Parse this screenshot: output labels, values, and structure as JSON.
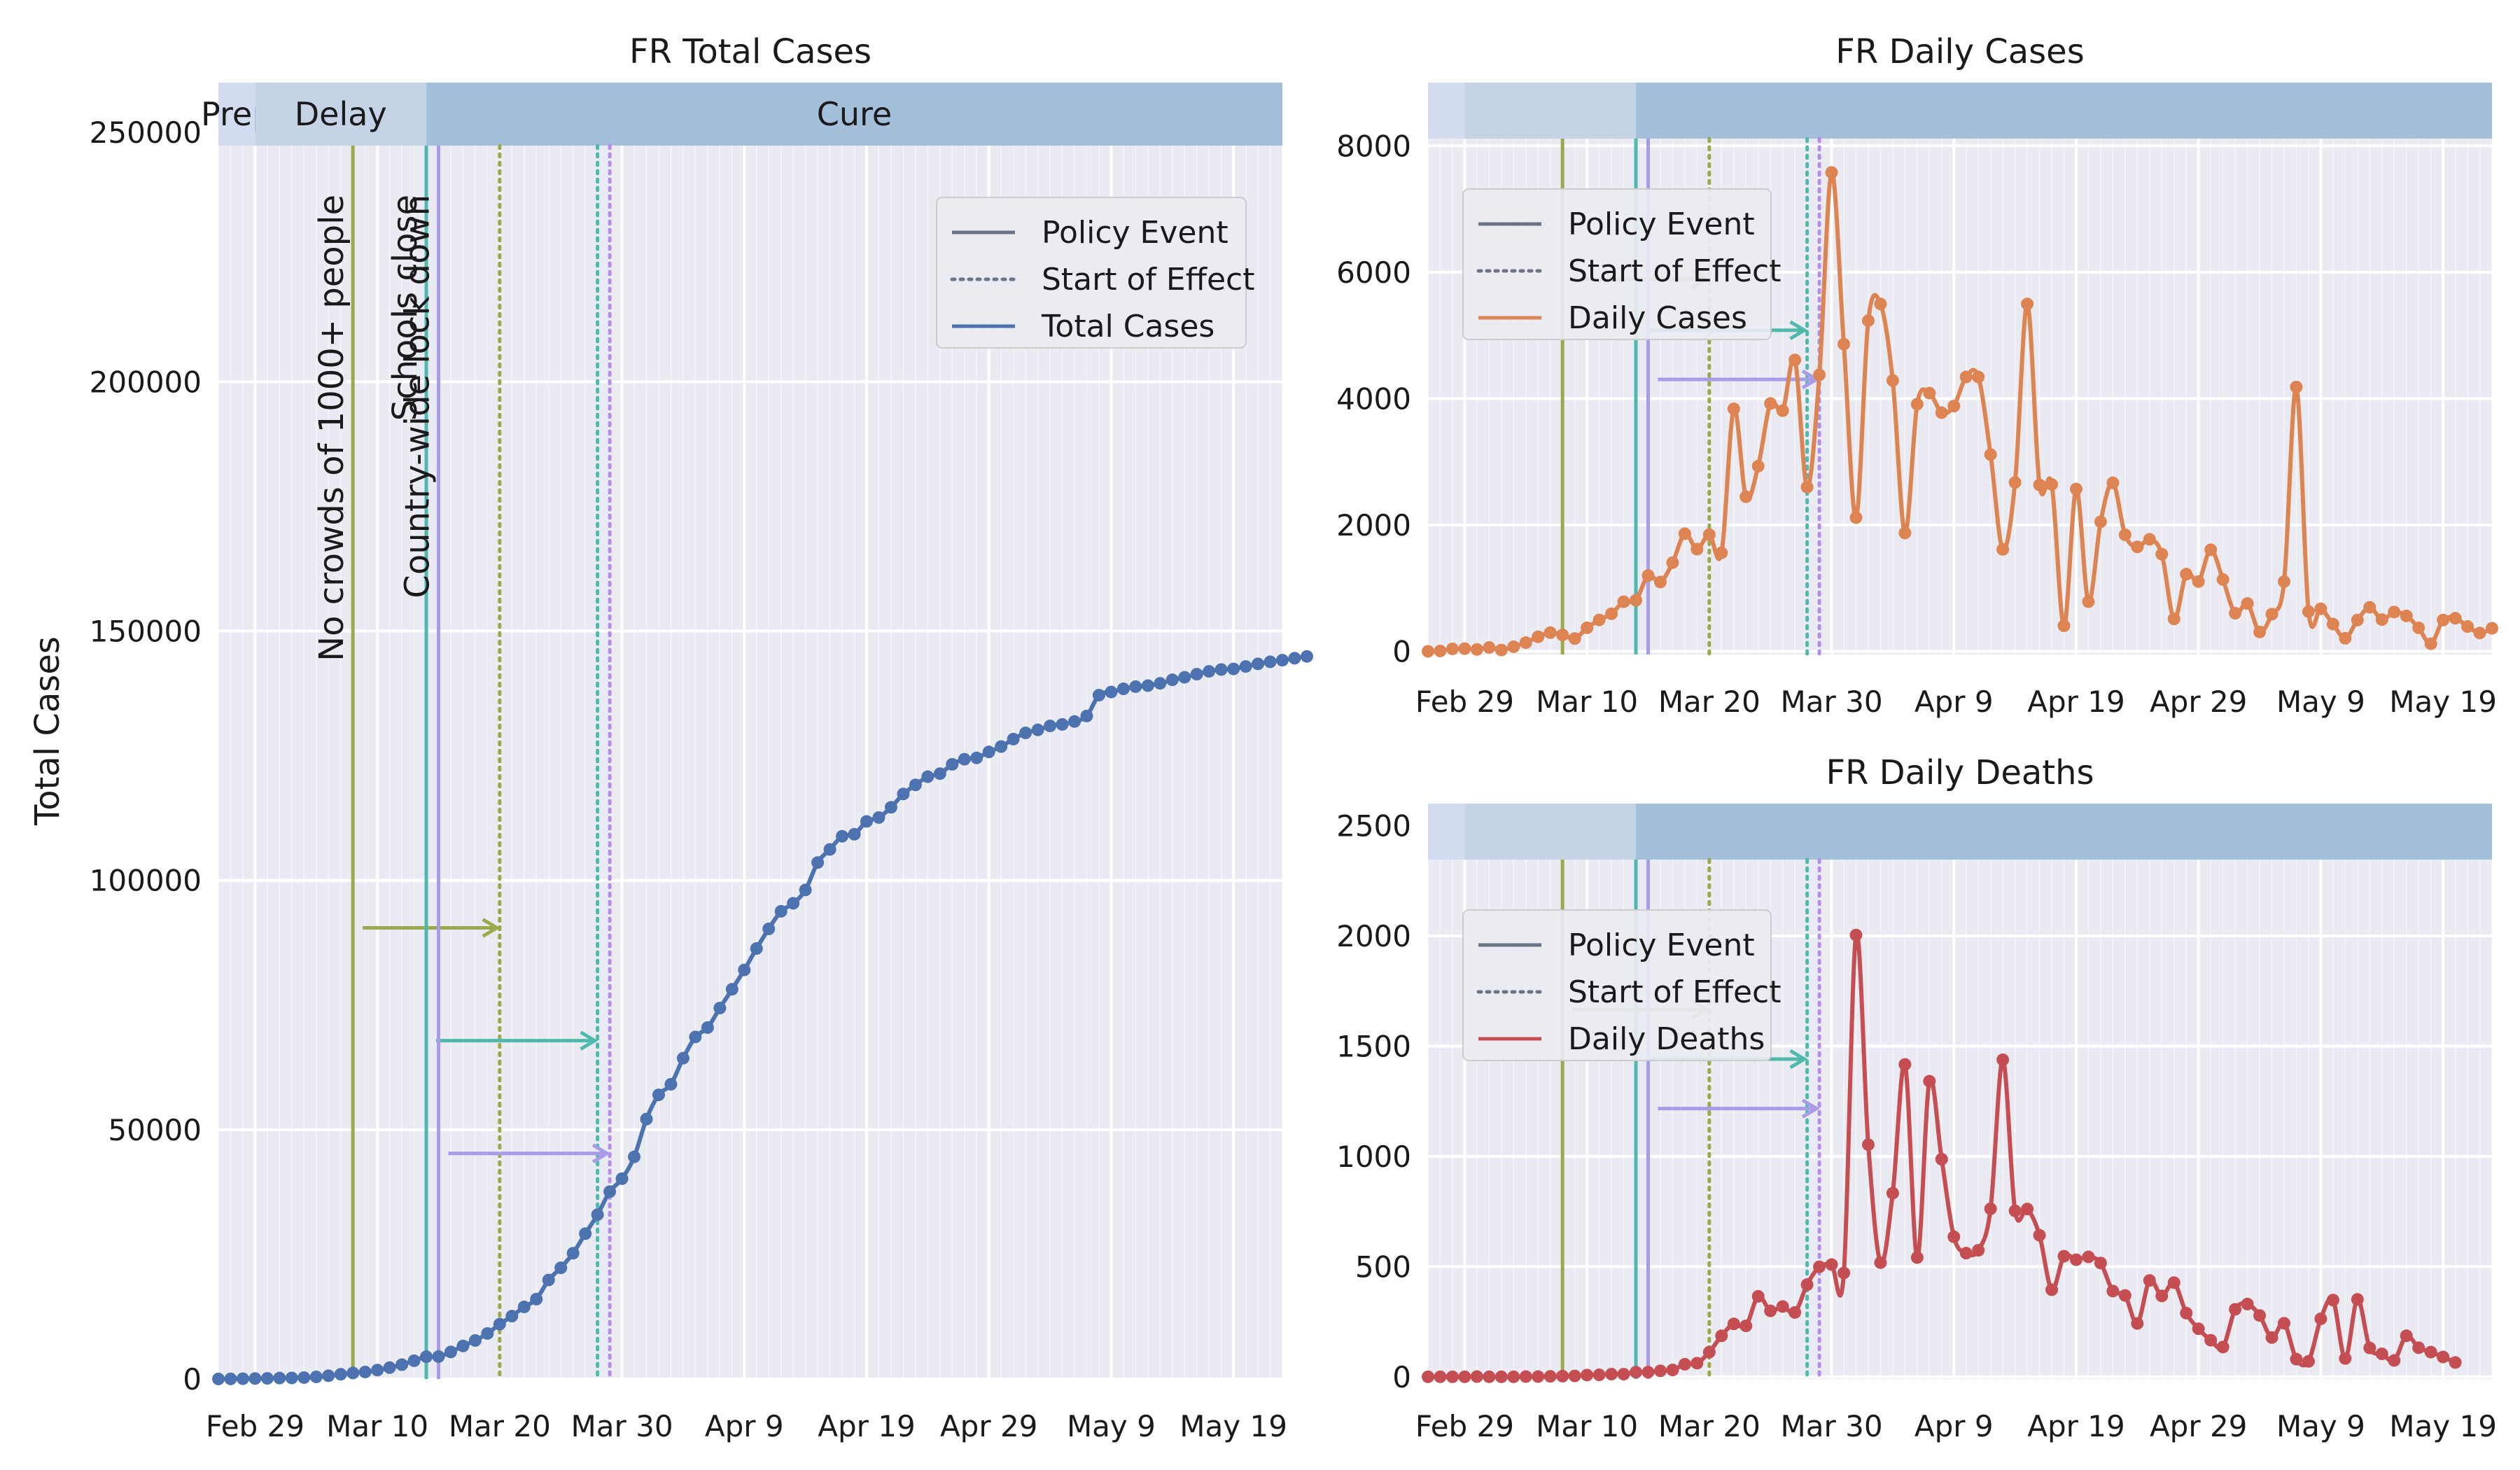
{
  "figure": {
    "background": "#ffffff",
    "plot_background": "#eaeaf2",
    "grid_color": "#ffffff"
  },
  "policy_events": [
    {
      "name": "No crowds of 1000+ people",
      "event_date": "2020-03-08",
      "effect_date": "2020-03-20",
      "color": "#9aa94d",
      "effect_color": "#9aa94d"
    },
    {
      "name": "Schools close",
      "event_date": "2020-03-14",
      "effect_date": "2020-03-28",
      "color": "#4fb9ad",
      "effect_color": "#4fb9ad"
    },
    {
      "name": "Country-wide lock down",
      "event_date": "2020-03-15",
      "effect_date": "2020-03-29",
      "color": "#a89be8",
      "effect_color": "#b48ee8"
    }
  ],
  "phases": [
    {
      "label": "Prep",
      "start": "2020-02-26",
      "end": "2020-02-29",
      "color": "#d2dbef"
    },
    {
      "label": "Delay",
      "start": "2020-02-29",
      "end": "2020-03-14",
      "color": "#c6d2e5"
    },
    {
      "label": "Cure",
      "start": "2020-03-14",
      "end": "2020-05-23",
      "color": "#a4bfd9"
    }
  ],
  "chart_data": [
    {
      "id": "total",
      "type": "line",
      "title": "FR Total Cases",
      "xlabel": "",
      "ylabel": "Total Cases",
      "x_start": "2020-02-26",
      "x_range": [
        "2020-02-26",
        "2020-05-23"
      ],
      "ylim": [
        0,
        260000
      ],
      "yticks": [
        0,
        50000,
        100000,
        150000,
        200000,
        250000
      ],
      "xtick_labels": [
        "Feb 29",
        "Mar 10",
        "Mar 20",
        "Mar 30",
        "Apr 9",
        "Apr 19",
        "Apr 29",
        "May 9",
        "May 19"
      ],
      "xtick_dates": [
        "2020-02-29",
        "2020-03-10",
        "2020-03-20",
        "2020-03-30",
        "2020-04-09",
        "2020-04-19",
        "2020-04-29",
        "2020-05-09",
        "2020-05-19"
      ],
      "grid": true,
      "show_phase_labels": true,
      "show_event_labels": true,
      "legend": {
        "position": "top-right",
        "entries": [
          "Policy Event",
          "Start of Effect",
          "Total Cases"
        ]
      },
      "series": [
        {
          "name": "Total Cases",
          "color": "#4c72b0",
          "values": [
            12,
            18,
            57,
            100,
            130,
            191,
            212,
            285,
            423,
            653,
            949,
            1209,
            1412,
            1784,
            2281,
            2876,
            3661,
            4469,
            4499,
            5423,
            6633,
            7730,
            9134,
            10995,
            12612,
            14459,
            16018,
            19856,
            22304,
            25233,
            29155,
            32964,
            37575,
            40174,
            44550,
            52128,
            56989,
            59105,
            64338,
            68605,
            70478,
            74390,
            78167,
            82048,
            86334,
            90276,
            93790,
            95403,
            98076,
            103573,
            106206,
            108847,
            109252,
            111821,
            112606,
            114657,
            117324,
            119151,
            120804,
            121407,
            123279,
            124298,
            124575,
            125770,
            126835,
            128339,
            129581,
            130185,
            130979,
            131287,
            131863,
            132967,
            137150,
            137779,
            138421,
            138854,
            139063,
            139519,
            140227,
            140734,
            141356,
            141919,
            142291,
            142411,
            142903,
            143427,
            143845,
            144163,
            144556,
            144921
          ]
        }
      ]
    },
    {
      "id": "daily_cases",
      "type": "line",
      "title": "FR Daily Cases",
      "xlabel": "",
      "ylabel": "",
      "x_start": "2020-02-26",
      "x_range": [
        "2020-02-26",
        "2020-05-23"
      ],
      "ylim": [
        -50,
        9000
      ],
      "yticks": [
        0,
        2000,
        4000,
        6000,
        8000
      ],
      "xtick_labels": [
        "Feb 29",
        "Mar 10",
        "Mar 20",
        "Mar 30",
        "Apr 9",
        "Apr 19",
        "Apr 29",
        "May 9",
        "May 19"
      ],
      "xtick_dates": [
        "2020-02-29",
        "2020-03-10",
        "2020-03-20",
        "2020-03-30",
        "2020-04-09",
        "2020-04-19",
        "2020-04-29",
        "2020-05-09",
        "2020-05-19"
      ],
      "grid": true,
      "show_phase_labels": false,
      "show_event_labels": false,
      "legend": {
        "position": "top-left",
        "entries": [
          "Policy Event",
          "Start of Effect",
          "Daily Cases"
        ]
      },
      "series": [
        {
          "name": "Daily Cases",
          "color": "#dd8452",
          "values": [
            0,
            6,
            39,
            43,
            30,
            61,
            21,
            73,
            138,
            230,
            296,
            260,
            203,
            372,
            497,
            595,
            785,
            808,
            1200,
            1097,
            1404,
            1861,
            1617,
            1847,
            1559,
            3838,
            2446,
            2931,
            3922,
            3809,
            4611,
            2599,
            4376,
            7578,
            4861,
            2116,
            5233,
            5497,
            4286,
            1873,
            3912,
            4086,
            3777,
            3881,
            4342,
            4342,
            3114,
            1613,
            2673,
            5497,
            2633,
            2641,
            405,
            2569,
            785,
            2051,
            2667,
            1843,
            1653,
            1773,
            1537,
            513,
            1222,
            1104,
            1607,
            1136,
            603,
            757,
            306,
            588,
            1104,
            4183,
            629,
            674,
            432,
            207,
            495,
            697,
            502,
            622,
            561,
            372,
            120,
            495,
            524,
            393,
            290,
            365
          ]
        }
      ]
    },
    {
      "id": "daily_deaths",
      "type": "line",
      "title": "FR Daily Deaths",
      "xlabel": "",
      "ylabel": "",
      "x_start": "2020-02-26",
      "x_range": [
        "2020-02-26",
        "2020-05-23"
      ],
      "ylim": [
        -10,
        2600
      ],
      "yticks": [
        0,
        500,
        1000,
        1500,
        2000,
        2500
      ],
      "xtick_labels": [
        "Feb 29",
        "Mar 10",
        "Mar 20",
        "Mar 30",
        "Apr 9",
        "Apr 19",
        "Apr 29",
        "May 9",
        "May 19"
      ],
      "xtick_dates": [
        "2020-02-29",
        "2020-03-10",
        "2020-03-20",
        "2020-03-30",
        "2020-04-09",
        "2020-04-19",
        "2020-04-29",
        "2020-05-09",
        "2020-05-19"
      ],
      "grid": true,
      "show_phase_labels": false,
      "show_event_labels": false,
      "legend": {
        "position": "top-left",
        "entries": [
          "Policy Event",
          "Start of Effect",
          "Daily Deaths"
        ]
      },
      "series": [
        {
          "name": "Daily Deaths",
          "color": "#c44e52",
          "values": [
            0,
            0,
            0,
            0,
            1,
            0,
            0,
            0,
            1,
            1,
            2,
            3,
            4,
            8,
            9,
            12,
            12,
            21,
            21,
            27,
            31,
            57,
            62,
            112,
            186,
            240,
            231,
            365,
            299,
            319,
            292,
            418,
            499,
            509,
            471,
            2004,
            1053,
            518,
            833,
            1417,
            541,
            1341,
            987,
            635,
            561,
            574,
            762,
            1438,
            753,
            761,
            642,
            395,
            547,
            531,
            544,
            516,
            389,
            369,
            242,
            437,
            367,
            427,
            289,
            218,
            166,
            135,
            306,
            330,
            278,
            178,
            243,
            80,
            70,
            263,
            348,
            83,
            351,
            131,
            104,
            74,
            186,
            132,
            112,
            90,
            65
          ]
        }
      ]
    }
  ],
  "legend_labels": {
    "policy_event": "Policy Event",
    "start_of_effect": "Start of Effect"
  }
}
